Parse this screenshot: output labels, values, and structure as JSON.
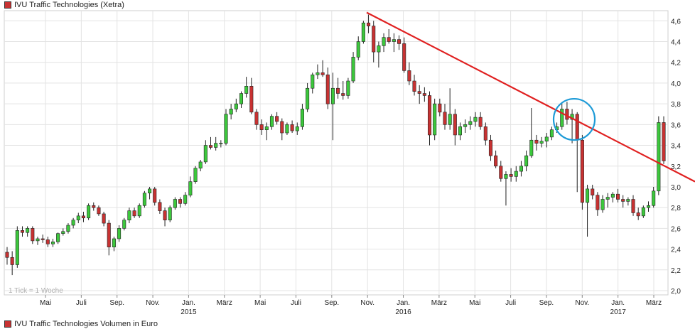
{
  "legend": {
    "price_label": "IVU Traffic Technologies (Xetra)",
    "volume_label": "IVU Traffic Technologies Volumen in Euro",
    "swatch_color": "#c83232"
  },
  "note": "1 Tick = 1 Woche",
  "colors": {
    "up": "#3cc83c",
    "down": "#c83232",
    "trend": "#e02020",
    "circle": "#1e9bd7",
    "grid": "#e3e3e3"
  },
  "chart_data": {
    "type": "candlestick",
    "title": "IVU Traffic Technologies (Xetra)",
    "interval": "1 Tick = 1 Woche",
    "ylim": [
      2.0,
      4.7
    ],
    "y_axis_position": "right",
    "y_ticks": [
      "4,6",
      "4,4",
      "4,2",
      "4,0",
      "3,8",
      "3,6",
      "3,4",
      "3,2",
      "3,0",
      "2,8",
      "2,6",
      "2,4",
      "2,2",
      "2,0"
    ],
    "x_ticks": [
      {
        "label": "Mai",
        "year": ""
      },
      {
        "label": "Juli",
        "year": ""
      },
      {
        "label": "Sep.",
        "year": ""
      },
      {
        "label": "Nov.",
        "year": ""
      },
      {
        "label": "Jan.",
        "year": "2015"
      },
      {
        "label": "März",
        "year": ""
      },
      {
        "label": "Mai",
        "year": ""
      },
      {
        "label": "Juli",
        "year": ""
      },
      {
        "label": "Sep.",
        "year": ""
      },
      {
        "label": "Nov.",
        "year": ""
      },
      {
        "label": "Jan.",
        "year": "2016"
      },
      {
        "label": "März",
        "year": ""
      },
      {
        "label": "Mai",
        "year": ""
      },
      {
        "label": "Juli",
        "year": ""
      },
      {
        "label": "Sep.",
        "year": ""
      },
      {
        "label": "Nov.",
        "year": ""
      },
      {
        "label": "Jan.",
        "year": "2017"
      },
      {
        "label": "März",
        "year": ""
      }
    ],
    "ohlc": [
      [
        2.37,
        2.42,
        2.25,
        2.32
      ],
      [
        2.32,
        2.38,
        2.15,
        2.25
      ],
      [
        2.25,
        2.62,
        2.22,
        2.58
      ],
      [
        2.58,
        2.62,
        2.52,
        2.56
      ],
      [
        2.56,
        2.62,
        2.52,
        2.6
      ],
      [
        2.6,
        2.62,
        2.45,
        2.48
      ],
      [
        2.48,
        2.52,
        2.44,
        2.5
      ],
      [
        2.5,
        2.54,
        2.46,
        2.49
      ],
      [
        2.49,
        2.52,
        2.42,
        2.45
      ],
      [
        2.45,
        2.5,
        2.42,
        2.47
      ],
      [
        2.47,
        2.56,
        2.45,
        2.55
      ],
      [
        2.55,
        2.6,
        2.53,
        2.57
      ],
      [
        2.57,
        2.65,
        2.55,
        2.63
      ],
      [
        2.63,
        2.7,
        2.6,
        2.68
      ],
      [
        2.68,
        2.75,
        2.65,
        2.72
      ],
      [
        2.72,
        2.76,
        2.66,
        2.7
      ],
      [
        2.7,
        2.84,
        2.68,
        2.82
      ],
      [
        2.82,
        2.85,
        2.77,
        2.8
      ],
      [
        2.8,
        2.82,
        2.72,
        2.74
      ],
      [
        2.74,
        2.76,
        2.62,
        2.65
      ],
      [
        2.65,
        2.68,
        2.34,
        2.42
      ],
      [
        2.42,
        2.52,
        2.38,
        2.5
      ],
      [
        2.5,
        2.63,
        2.47,
        2.6
      ],
      [
        2.6,
        2.7,
        2.58,
        2.68
      ],
      [
        2.68,
        2.8,
        2.65,
        2.77
      ],
      [
        2.77,
        2.8,
        2.7,
        2.72
      ],
      [
        2.72,
        2.84,
        2.7,
        2.82
      ],
      [
        2.82,
        2.96,
        2.8,
        2.94
      ],
      [
        2.94,
        3.0,
        2.88,
        2.98
      ],
      [
        2.98,
        3.0,
        2.82,
        2.85
      ],
      [
        2.85,
        2.88,
        2.74,
        2.77
      ],
      [
        2.77,
        2.8,
        2.62,
        2.68
      ],
      [
        2.68,
        2.82,
        2.66,
        2.8
      ],
      [
        2.8,
        2.9,
        2.78,
        2.88
      ],
      [
        2.88,
        2.9,
        2.8,
        2.84
      ],
      [
        2.84,
        2.95,
        2.82,
        2.92
      ],
      [
        2.92,
        3.1,
        2.9,
        3.05
      ],
      [
        3.05,
        3.2,
        3.03,
        3.18
      ],
      [
        3.18,
        3.26,
        3.15,
        3.24
      ],
      [
        3.24,
        3.45,
        3.22,
        3.4
      ],
      [
        3.4,
        3.48,
        3.36,
        3.38
      ],
      [
        3.38,
        3.48,
        3.35,
        3.42
      ],
      [
        3.42,
        3.45,
        3.38,
        3.42
      ],
      [
        3.42,
        3.75,
        3.4,
        3.7
      ],
      [
        3.7,
        3.8,
        3.65,
        3.75
      ],
      [
        3.75,
        3.85,
        3.72,
        3.8
      ],
      [
        3.8,
        3.92,
        3.76,
        3.9
      ],
      [
        3.9,
        4.06,
        3.86,
        3.97
      ],
      [
        3.97,
        4.05,
        3.7,
        3.72
      ],
      [
        3.72,
        3.75,
        3.55,
        3.6
      ],
      [
        3.6,
        3.65,
        3.5,
        3.55
      ],
      [
        3.55,
        3.62,
        3.45,
        3.58
      ],
      [
        3.58,
        3.7,
        3.55,
        3.68
      ],
      [
        3.68,
        3.72,
        3.6,
        3.63
      ],
      [
        3.63,
        3.66,
        3.45,
        3.52
      ],
      [
        3.52,
        3.62,
        3.5,
        3.6
      ],
      [
        3.6,
        3.64,
        3.52,
        3.54
      ],
      [
        3.54,
        3.62,
        3.5,
        3.58
      ],
      [
        3.58,
        3.8,
        3.55,
        3.75
      ],
      [
        3.75,
        4.0,
        3.72,
        3.95
      ],
      [
        3.95,
        4.1,
        3.9,
        4.08
      ],
      [
        4.08,
        4.18,
        4.04,
        4.1
      ],
      [
        4.1,
        4.22,
        4.06,
        4.08
      ],
      [
        4.08,
        4.15,
        3.75,
        3.8
      ],
      [
        3.8,
        4.1,
        3.45,
        3.95
      ],
      [
        3.95,
        4.05,
        3.85,
        3.9
      ],
      [
        3.9,
        4.02,
        3.84,
        3.88
      ],
      [
        3.88,
        4.05,
        3.85,
        4.02
      ],
      [
        4.02,
        4.3,
        4.0,
        4.25
      ],
      [
        4.25,
        4.45,
        4.22,
        4.4
      ],
      [
        4.4,
        4.6,
        4.38,
        4.58
      ],
      [
        4.58,
        4.66,
        4.48,
        4.55
      ],
      [
        4.55,
        4.6,
        4.2,
        4.3
      ],
      [
        4.3,
        4.4,
        4.15,
        4.36
      ],
      [
        4.36,
        4.48,
        4.3,
        4.44
      ],
      [
        4.44,
        4.52,
        4.38,
        4.4
      ],
      [
        4.4,
        4.48,
        4.3,
        4.42
      ],
      [
        4.42,
        4.46,
        4.32,
        4.38
      ],
      [
        4.38,
        4.44,
        4.1,
        4.12
      ],
      [
        4.12,
        4.2,
        3.98,
        4.02
      ],
      [
        4.02,
        4.08,
        3.88,
        3.92
      ],
      [
        3.92,
        3.98,
        3.8,
        3.9
      ],
      [
        3.9,
        3.96,
        3.82,
        3.88
      ],
      [
        3.88,
        3.92,
        3.4,
        3.5
      ],
      [
        3.5,
        3.85,
        3.45,
        3.8
      ],
      [
        3.8,
        3.85,
        3.68,
        3.72
      ],
      [
        3.72,
        3.8,
        3.55,
        3.6
      ],
      [
        3.6,
        3.95,
        3.55,
        3.7
      ],
      [
        3.7,
        3.75,
        3.4,
        3.5
      ],
      [
        3.5,
        3.62,
        3.45,
        3.58
      ],
      [
        3.58,
        3.65,
        3.52,
        3.6
      ],
      [
        3.6,
        3.68,
        3.55,
        3.63
      ],
      [
        3.63,
        3.72,
        3.58,
        3.67
      ],
      [
        3.67,
        3.72,
        3.55,
        3.58
      ],
      [
        3.58,
        3.62,
        3.4,
        3.45
      ],
      [
        3.45,
        3.5,
        3.25,
        3.3
      ],
      [
        3.3,
        3.35,
        3.18,
        3.2
      ],
      [
        3.2,
        3.25,
        3.05,
        3.08
      ],
      [
        3.08,
        3.15,
        2.82,
        3.12
      ],
      [
        3.12,
        3.18,
        3.05,
        3.1
      ],
      [
        3.1,
        3.2,
        3.05,
        3.15
      ],
      [
        3.15,
        3.25,
        3.1,
        3.2
      ],
      [
        3.2,
        3.35,
        3.15,
        3.3
      ],
      [
        3.3,
        3.76,
        3.28,
        3.45
      ],
      [
        3.45,
        3.5,
        3.35,
        3.42
      ],
      [
        3.42,
        3.48,
        3.38,
        3.44
      ],
      [
        3.44,
        3.52,
        3.38,
        3.48
      ],
      [
        3.48,
        3.58,
        3.45,
        3.55
      ],
      [
        3.55,
        3.62,
        3.52,
        3.58
      ],
      [
        3.58,
        3.8,
        3.55,
        3.75
      ],
      [
        3.75,
        3.82,
        3.6,
        3.65
      ],
      [
        3.65,
        3.75,
        3.42,
        3.7
      ],
      [
        3.7,
        3.72,
        2.95,
        3.45
      ],
      [
        3.45,
        3.5,
        2.78,
        2.85
      ],
      [
        2.85,
        3.02,
        2.52,
        2.98
      ],
      [
        2.98,
        3.02,
        2.88,
        2.92
      ],
      [
        2.92,
        2.95,
        2.72,
        2.78
      ],
      [
        2.78,
        2.92,
        2.75,
        2.88
      ],
      [
        2.88,
        2.94,
        2.8,
        2.9
      ],
      [
        2.9,
        2.95,
        2.85,
        2.93
      ],
      [
        2.93,
        2.98,
        2.85,
        2.88
      ],
      [
        2.88,
        2.92,
        2.8,
        2.86
      ],
      [
        2.86,
        2.9,
        2.82,
        2.88
      ],
      [
        2.88,
        2.92,
        2.72,
        2.75
      ],
      [
        2.75,
        2.8,
        2.68,
        2.72
      ],
      [
        2.72,
        2.82,
        2.7,
        2.8
      ],
      [
        2.8,
        2.86,
        2.76,
        2.82
      ],
      [
        2.82,
        3.0,
        2.8,
        2.96
      ],
      [
        2.96,
        3.68,
        2.92,
        3.62
      ],
      [
        3.62,
        3.68,
        3.22,
        3.25
      ]
    ],
    "trendline": [
      {
        "x": "Nov. 2015",
        "y": 4.68
      },
      {
        "x": "Apr. 2017",
        "y": 3.05
      }
    ],
    "highlight_circle": {
      "x": "Okt. 2016",
      "y": 3.65
    }
  }
}
